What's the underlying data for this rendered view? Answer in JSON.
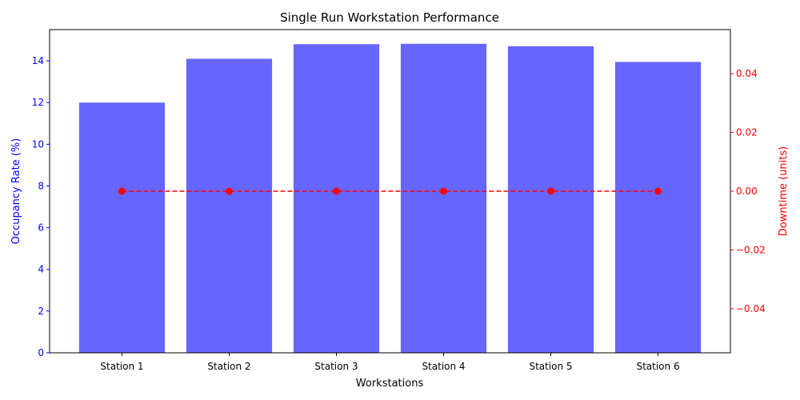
{
  "chart_data": {
    "type": "bar",
    "title": "Single Run Workstation Performance",
    "xlabel": "Workstations",
    "ylabel": "Occupancy Rate (%)",
    "y2label": "Downtime (units)",
    "categories": [
      "Station 1",
      "Station 2",
      "Station 3",
      "Station 4",
      "Station 5",
      "Station 6"
    ],
    "series": [
      {
        "type": "bar",
        "axis": "left",
        "color": "#6666ff",
        "values": [
          12.0,
          14.1,
          14.8,
          14.82,
          14.7,
          13.95
        ]
      },
      {
        "type": "line",
        "axis": "right",
        "color": "#ff0000",
        "line_style": "dashed",
        "marker": "circle",
        "values": [
          0,
          0,
          0,
          0,
          0,
          0
        ]
      }
    ],
    "ylim": [
      0,
      15.5
    ],
    "y_ticks": [
      "0",
      "2",
      "4",
      "6",
      "8",
      "10",
      "12",
      "14"
    ],
    "y2lim": [
      -0.055,
      0.055
    ],
    "y2_ticks": [
      "−0.04",
      "−0.02",
      "0.00",
      "0.02",
      "0.04"
    ],
    "left_axis_color": "#0000ff",
    "right_axis_color": "#ff0000",
    "grid": false,
    "legend": "none"
  }
}
